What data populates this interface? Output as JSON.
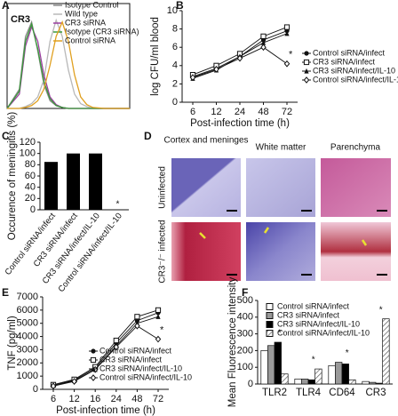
{
  "chart_data": [
    {
      "type": "histogram-curves",
      "panel": "A",
      "title": "CR3",
      "xlim": [
        0,
        10
      ],
      "ylim": [
        0,
        100
      ],
      "x": [
        0,
        1,
        1.5,
        2,
        2.5,
        3,
        3.5,
        4,
        4.5,
        5,
        5.5,
        6,
        6.5,
        7,
        8,
        10
      ],
      "series": [
        {
          "name": "Isotype  Control",
          "color": "#8a8a8a",
          "values": [
            0,
            20,
            75,
            90,
            60,
            25,
            8,
            3,
            1,
            0,
            0,
            0,
            0,
            0,
            0,
            0
          ]
        },
        {
          "name": "Wild type",
          "color": "#b8b8b8",
          "values": [
            0,
            0,
            2,
            5,
            12,
            30,
            70,
            92,
            75,
            40,
            15,
            5,
            2,
            0,
            0,
            0
          ]
        },
        {
          "name": "CR3 siRNA",
          "color": "#9b3fa0",
          "values": [
            0,
            15,
            65,
            85,
            70,
            35,
            12,
            4,
            1,
            0,
            0,
            0,
            0,
            0,
            0,
            0
          ]
        },
        {
          "name": "Isotype (CR3 siRNA)",
          "color": "#3a9a3a",
          "values": [
            0,
            18,
            70,
            88,
            62,
            28,
            10,
            3,
            1,
            0,
            0,
            0,
            0,
            0,
            0,
            0
          ]
        },
        {
          "name": "Control siRNA",
          "color": "#e0a020",
          "values": [
            0,
            0,
            1,
            3,
            8,
            20,
            45,
            75,
            90,
            70,
            35,
            12,
            4,
            1,
            0,
            0
          ]
        }
      ]
    },
    {
      "type": "line",
      "panel": "B",
      "categories": [
        "6",
        "12",
        "24",
        "48",
        "72"
      ],
      "ylim": [
        0,
        10
      ],
      "yticks": [
        0,
        2,
        4,
        6,
        8,
        10
      ],
      "ylabel": "log CFU/ml blood",
      "xlabel": "Post-infection time (h)",
      "annotations": [
        "*"
      ],
      "series": [
        {
          "name": "Control siRNA/infect",
          "color": "#111111",
          "marker": "circle",
          "values": [
            2.8,
            3.7,
            5.0,
            6.8,
            7.8
          ]
        },
        {
          "name": "CR3 siRNA/infect",
          "color": "#111111",
          "marker": "square",
          "values": [
            3.0,
            4.0,
            5.3,
            7.2,
            8.2
          ]
        },
        {
          "name": "CR3 siRNA/infect/IL-10",
          "color": "#111111",
          "marker": "triangle",
          "values": [
            2.6,
            3.5,
            5.0,
            6.5,
            7.5
          ]
        },
        {
          "name": "Control siRNA/infect/IL-10",
          "color": "#111111",
          "marker": "diamond",
          "values": [
            2.7,
            3.6,
            4.8,
            6.0,
            4.2
          ]
        }
      ]
    },
    {
      "type": "bar",
      "panel": "C",
      "categories": [
        "Control siRNA/infect",
        "CR3 siRNA/infect",
        "CR3 siRNA/infect/IL-10",
        "Control siRNA/infect/IL-10"
      ],
      "values": [
        85,
        100,
        100,
        0
      ],
      "color": "#000000",
      "ylim": [
        0,
        120
      ],
      "yticks": [
        0,
        20,
        40,
        60,
        80,
        100,
        120
      ],
      "ylabel": "Occurence of meningitis (%)",
      "annotations": [
        "*"
      ]
    },
    {
      "type": "line",
      "panel": "E",
      "categories": [
        "6",
        "12",
        "16",
        "24",
        "48",
        "72"
      ],
      "ylim": [
        0,
        7000
      ],
      "yticks": [
        0,
        1000,
        2000,
        3000,
        4000,
        5000,
        6000,
        7000
      ],
      "ylabel": "TNF (pg/ml)",
      "xlabel": "Post-infection time (h)",
      "annotations": [
        "*"
      ],
      "series": [
        {
          "name": "Control siRNA/infect",
          "color": "#111111",
          "marker": "circle",
          "values": [
            300,
            700,
            1600,
            3500,
            5200,
            5800
          ]
        },
        {
          "name": "CR3 siRNA/infect",
          "color": "#111111",
          "marker": "square",
          "values": [
            350,
            750,
            1700,
            3700,
            5500,
            6000
          ]
        },
        {
          "name": "CR3 siRNA/infect/IL-10",
          "color": "#111111",
          "marker": "triangle",
          "values": [
            300,
            650,
            1500,
            3300,
            5000,
            5500
          ]
        },
        {
          "name": "Control siRNA/infect/IL-10",
          "color": "#111111",
          "marker": "diamond",
          "values": [
            250,
            600,
            1500,
            3200,
            4800,
            3800
          ]
        }
      ]
    },
    {
      "type": "grouped-bar",
      "panel": "F",
      "categories": [
        "TLR2",
        "TLR4",
        "CD64",
        "CR3"
      ],
      "ylim": [
        0,
        500
      ],
      "yticks": [
        0,
        100,
        200,
        300,
        400,
        500
      ],
      "ylabel": "Mean Fluorescence intensity",
      "annotations": [
        "*",
        "*",
        "*",
        "*"
      ],
      "series": [
        {
          "name": "Control siRNA/infect",
          "color": "#ffffff",
          "values": [
            200,
            30,
            110,
            15
          ]
        },
        {
          "name": "CR3 siRNA/infect",
          "color": "#999999",
          "values": [
            230,
            30,
            130,
            10
          ]
        },
        {
          "name": "CR3 siRNA/infect/IL-10",
          "color": "#000000",
          "values": [
            250,
            25,
            120,
            5
          ]
        },
        {
          "name": "Control siRNA/infect/IL-10",
          "color": "#dddddd",
          "hatch": true,
          "values": [
            60,
            90,
            25,
            390
          ]
        }
      ]
    }
  ],
  "micrographs": {
    "panel": "D",
    "columns": [
      "Cortex and meninges",
      "White matter",
      "Parenchyma"
    ],
    "rows": [
      "Uninfected",
      "CR3⁻/⁻ infected"
    ]
  }
}
